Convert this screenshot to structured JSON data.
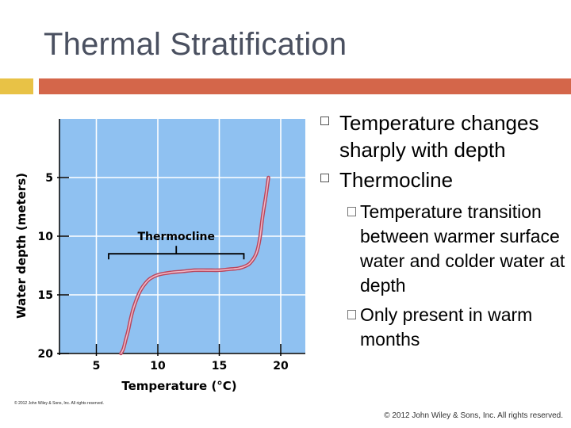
{
  "slide": {
    "title": "Thermal Stratification",
    "bullets": [
      {
        "text": "Temperature changes sharply with depth",
        "sub": []
      },
      {
        "text": "Thermocline",
        "sub": [
          "Temperature transition between warmer surface water and colder water at depth",
          "Only present in warm months"
        ]
      }
    ],
    "footer": "© 2012 John Wiley & Sons, Inc. All rights reserved.",
    "figure_credit": "© 2012 John Wiley & Sons, Inc. All rights reserved."
  },
  "colors": {
    "title": "#4a5060",
    "accent_square": "#e8c246",
    "accent_bar": "#d4664a",
    "plot_bg": "#8fc1f1",
    "grid": "#ffffff",
    "curve": "#b8475e"
  },
  "chart_data": {
    "type": "line",
    "title": "",
    "xlabel": "Temperature (°C)",
    "ylabel": "Water depth (meters)",
    "xlim": [
      2,
      22
    ],
    "ylim": [
      20,
      0
    ],
    "y_inverted": true,
    "grid": true,
    "x_ticks": [
      5,
      10,
      15,
      20
    ],
    "y_ticks": [
      5,
      10,
      15,
      20
    ],
    "series": [
      {
        "name": "",
        "x": [
          19.0,
          18.8,
          18.5,
          18.3,
          18.0,
          17.5,
          17.0,
          16.5,
          16.0,
          15.5,
          15.0,
          14.0,
          13.0,
          12.0,
          11.0,
          10.0,
          9.4,
          9.0,
          8.6,
          8.3,
          8.0,
          7.8,
          7.6,
          7.4,
          7.2,
          7.0
        ],
        "y": [
          5.0,
          6.5,
          8.5,
          10.2,
          11.5,
          12.3,
          12.6,
          12.75,
          12.8,
          12.85,
          12.9,
          12.9,
          12.9,
          13.0,
          13.1,
          13.3,
          13.6,
          14.0,
          14.6,
          15.3,
          16.2,
          17.0,
          18.0,
          18.8,
          19.6,
          20.0
        ]
      }
    ],
    "annotations": [
      {
        "text": "Thermocline",
        "bracket_x": [
          6.0,
          17.0
        ],
        "bracket_y": 11.5
      }
    ]
  }
}
